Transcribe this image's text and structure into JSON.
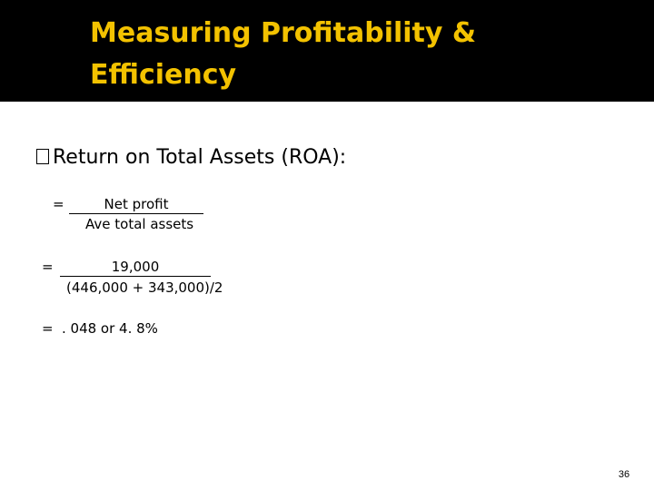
{
  "slide": {
    "title_line1": "Measuring Profitability &",
    "title_line2": "Efficiency",
    "bullet_text": "Return on Total Assets (ROA):",
    "formula": {
      "eq_sign": "=",
      "numerator": "Net profit",
      "denominator": "Ave total assets"
    },
    "substitution": {
      "eq_sign": "=",
      "numerator": "19,000",
      "denominator": "(446,000 + 343,000)/2"
    },
    "result": {
      "eq_sign": "=",
      "value": ". 048 or 4. 8%"
    },
    "page_number": "36"
  },
  "colors": {
    "header_background": "#000000",
    "title_text": "#f3c200",
    "body_text": "#000000",
    "background": "#ffffff"
  },
  "icons": {
    "bullet": "square-bullet-icon"
  }
}
